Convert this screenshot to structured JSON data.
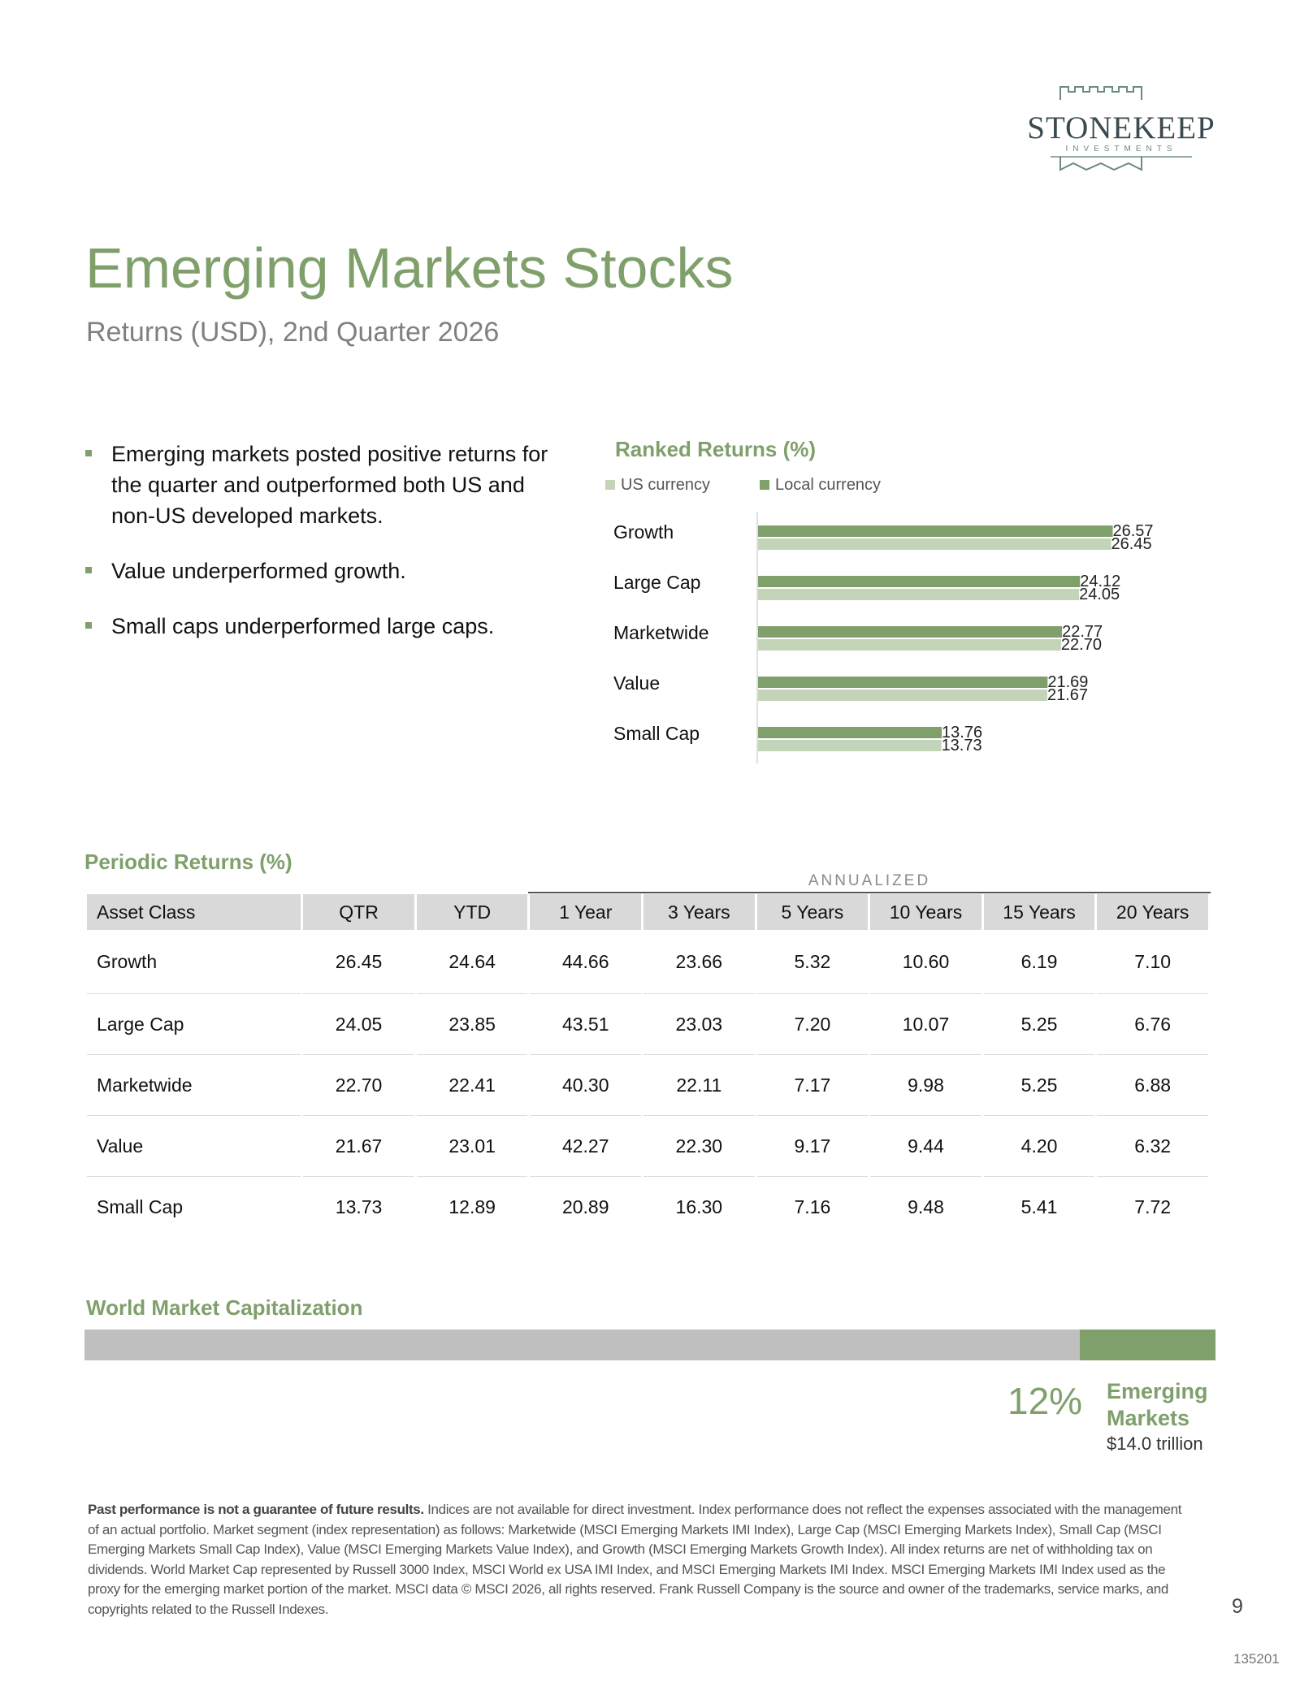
{
  "logo": {
    "name": "STONEKEEP",
    "sub": "INVESTMENTS"
  },
  "header": {
    "title": "Emerging Markets Stocks",
    "subtitle": "Returns (USD), 2nd Quarter 2026"
  },
  "bullets": [
    "Emerging markets posted positive returns for the quarter and outperformed both US and non-US developed markets.",
    "Value underperformed growth.",
    "Small caps underperformed large caps."
  ],
  "ranked_chart": {
    "title": "Ranked Returns (%)",
    "legend": {
      "us": "US currency",
      "local": "Local currency"
    }
  },
  "chart_data": {
    "type": "bar",
    "orientation": "horizontal",
    "title": "Ranked Returns (%)",
    "categories": [
      "Growth",
      "Large Cap",
      "Marketwide",
      "Value",
      "Small Cap"
    ],
    "series": [
      {
        "name": "Local currency",
        "values": [
          26.57,
          24.12,
          22.77,
          21.69,
          13.76
        ],
        "color": "#7f9f6b"
      },
      {
        "name": "US currency",
        "values": [
          26.45,
          24.05,
          22.7,
          21.67,
          13.73
        ],
        "color": "#c3d4b8"
      }
    ],
    "xlim": [
      0,
      28
    ],
    "legend": "top-left"
  },
  "periodic": {
    "title": "Periodic Returns (%)",
    "annualized_label": "ANNUALIZED",
    "columns": [
      "Asset Class",
      "QTR",
      "YTD",
      "1 Year",
      "3 Years",
      "5 Years",
      "10 Years",
      "15 Years",
      "20 Years"
    ],
    "rows": [
      [
        "Growth",
        "26.45",
        "24.64",
        "44.66",
        "23.66",
        "5.32",
        "10.60",
        "6.19",
        "7.10"
      ],
      [
        "Large Cap",
        "24.05",
        "23.85",
        "43.51",
        "23.03",
        "7.20",
        "10.07",
        "5.25",
        "6.76"
      ],
      [
        "Marketwide",
        "22.70",
        "22.41",
        "40.30",
        "22.11",
        "7.17",
        "9.98",
        "5.25",
        "6.88"
      ],
      [
        "Value",
        "21.67",
        "23.01",
        "42.27",
        "22.30",
        "9.17",
        "9.44",
        "4.20",
        "6.32"
      ],
      [
        "Small Cap",
        "13.73",
        "12.89",
        "20.89",
        "16.30",
        "7.16",
        "9.48",
        "5.41",
        "7.72"
      ]
    ]
  },
  "market_cap": {
    "title": "World Market Capitalization",
    "share": 0.12,
    "percent_label": "12%",
    "segment_label": "Emerging Markets",
    "amount": "$14.0 trillion"
  },
  "disclaimer": {
    "bold": "Past performance is not a guarantee of future results.",
    "text": " Indices are not available for direct investment. Index performance does not reflect the expenses associated with the management of an actual portfolio. Market segment (index representation) as follows: Marketwide (MSCI Emerging Markets IMI Index), Large Cap (MSCI Emerging Markets Index), Small Cap (MSCI Emerging Markets Small Cap Index), Value (MSCI Emerging Markets Value Index), and Growth (MSCI Emerging Markets Growth Index). All index returns are net of withholding tax on dividends. World Market Cap represented by Russell 3000 Index, MSCI World ex USA IMI Index, and MSCI Emerging Markets IMI Index. MSCI Emerging Markets IMI Index used as the proxy for the emerging market portion of the market. MSCI data © MSCI 2026, all rights reserved. Frank Russell Company is the source and owner of the trademarks, service marks, and copyrights related to the Russell Indexes."
  },
  "footer": {
    "page_number": "9",
    "doc_id": "135201"
  },
  "colors": {
    "accent": "#7f9f6b",
    "accent_light": "#c3d4b8",
    "bar_gray": "#bfbfbf",
    "header_gray": "#d9d9d9"
  }
}
